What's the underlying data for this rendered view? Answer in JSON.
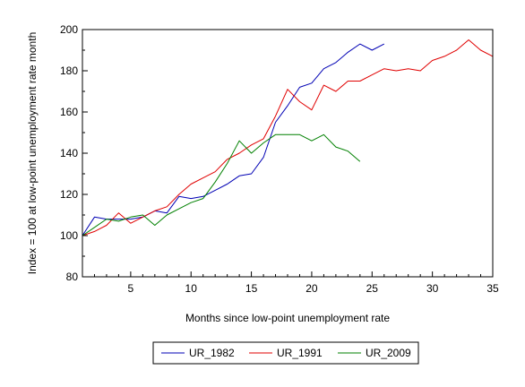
{
  "chart_data": {
    "type": "line",
    "title": "",
    "xlabel": "Months since low-point unemployment rate",
    "ylabel": "Index = 100 at low-point unemployment rate month",
    "xlim": [
      1,
      35
    ],
    "ylim": [
      80,
      200
    ],
    "xticks": [
      5,
      10,
      15,
      20,
      25,
      30,
      35
    ],
    "yticks": [
      80,
      100,
      120,
      140,
      160,
      180,
      200
    ],
    "grid": false,
    "legend_position": "bottom",
    "series": [
      {
        "name": "UR_1982",
        "color": "#0000b4",
        "x": [
          1,
          2,
          3,
          4,
          5,
          6,
          7,
          8,
          9,
          10,
          11,
          12,
          13,
          14,
          15,
          16,
          17,
          18,
          19,
          20,
          21,
          22,
          23,
          24,
          25,
          26
        ],
        "y": [
          100,
          109,
          108,
          108,
          108,
          109,
          112,
          111,
          119,
          118,
          119,
          122,
          125,
          129,
          130,
          138,
          155,
          163,
          172,
          174,
          181,
          184,
          189,
          193,
          190,
          193
        ]
      },
      {
        "name": "UR_1991",
        "color": "#e00000",
        "x": [
          1,
          2,
          3,
          4,
          5,
          6,
          7,
          8,
          9,
          10,
          11,
          12,
          13,
          14,
          15,
          16,
          17,
          18,
          19,
          20,
          21,
          22,
          23,
          24,
          25,
          26,
          27,
          28,
          29,
          30,
          31,
          32,
          33,
          34,
          35
        ],
        "y": [
          100,
          102,
          105,
          111,
          106,
          109,
          112,
          114,
          120,
          125,
          128,
          131,
          137,
          140,
          144,
          147,
          158,
          171,
          165,
          161,
          173,
          170,
          175,
          175,
          178,
          181,
          180,
          181,
          180,
          185,
          187,
          190,
          195,
          190,
          187
        ]
      },
      {
        "name": "UR_2009",
        "color": "#008000",
        "x": [
          1,
          2,
          3,
          4,
          5,
          6,
          7,
          8,
          9,
          10,
          11,
          12,
          13,
          14,
          15,
          16,
          17,
          18,
          19,
          20,
          21,
          22,
          23,
          24
        ],
        "y": [
          100,
          104,
          108,
          107,
          109,
          110,
          105,
          110,
          113,
          116,
          118,
          126,
          135,
          146,
          140,
          145,
          149,
          149,
          149,
          146,
          149,
          143,
          141,
          136
        ]
      }
    ]
  }
}
